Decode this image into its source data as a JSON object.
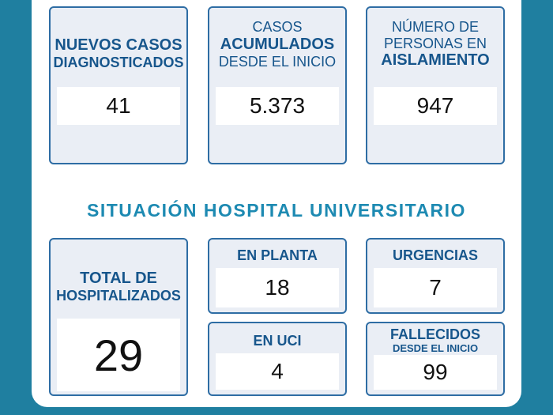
{
  "top": {
    "nuevos": {
      "line1": "NUEVOS CASOS",
      "line2": "DIAGNOSTICADOS",
      "value": "41"
    },
    "acumulados": {
      "line1": "CASOS",
      "line2": "ACUMULADOS",
      "line3": "DESDE EL INICIO",
      "value": "5.373"
    },
    "aislamiento": {
      "line1": "NÚMERO DE",
      "line2": "PERSONAS EN",
      "line3": "AISLAMIENTO",
      "value": "947"
    }
  },
  "hospital": {
    "title": "SITUACIÓN HOSPITAL UNIVERSITARIO",
    "total": {
      "line1": "TOTAL DE",
      "line2": "HOSPITALIZADOS",
      "value": "29"
    },
    "planta": {
      "label": "EN PLANTA",
      "value": "18"
    },
    "urgencias": {
      "label": "URGENCIAS",
      "value": "7"
    },
    "uci": {
      "label": "EN UCI",
      "value": "4"
    },
    "fallecidos": {
      "line1": "FALLECIDOS",
      "line2": "DESDE EL INICIO",
      "value": "99"
    }
  },
  "colors": {
    "background": "#1f7fa0",
    "card_border": "#2e6da4",
    "card_fill": "#eaeef5",
    "label": "#17568c",
    "section_title": "#1d8ab2"
  }
}
